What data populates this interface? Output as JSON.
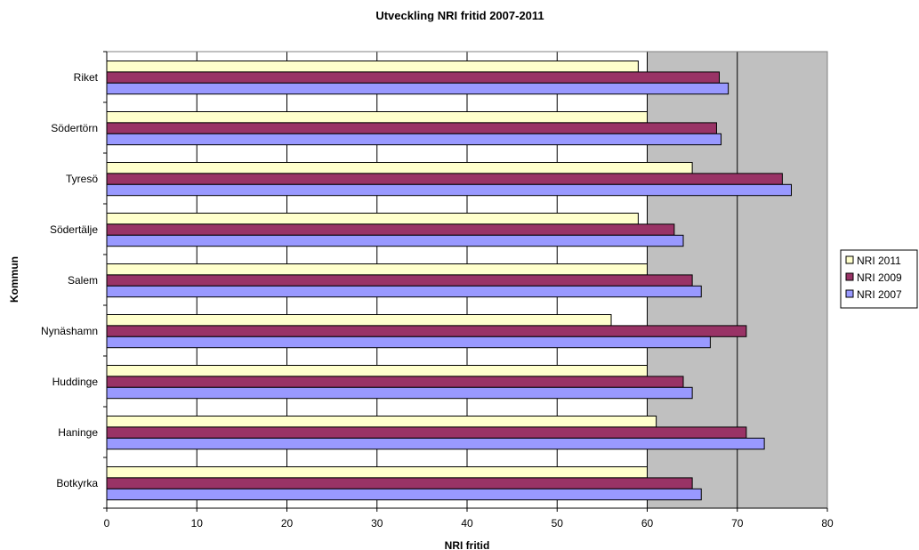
{
  "chart_data": {
    "type": "bar",
    "orientation": "horizontal",
    "title": "Utveckling NRI fritid 2007-2011",
    "xlabel": "NRI fritid",
    "ylabel": "Kommun",
    "xlim": [
      0,
      80
    ],
    "xticks": [
      "0",
      "10",
      "20",
      "30",
      "40",
      "50",
      "60",
      "70",
      "80"
    ],
    "grid": true,
    "legend_position": "right",
    "categories": [
      "Riket",
      "Södertörn",
      "Tyresö",
      "Södertälje",
      "Salem",
      "Nynäshamn",
      "Huddinge",
      "Haninge",
      "Botkyrka"
    ],
    "series": [
      {
        "name": "NRI 2011",
        "color": "#ffffcc",
        "values": [
          59,
          60,
          65,
          59,
          60,
          56,
          60,
          61,
          60
        ]
      },
      {
        "name": "NRI 2009",
        "color": "#993366",
        "values": [
          68,
          67.7,
          75,
          63,
          65,
          71,
          64,
          71,
          65
        ]
      },
      {
        "name": "NRI 2007",
        "color": "#9999ff",
        "values": [
          69,
          68.2,
          76,
          64,
          66,
          67,
          65,
          73,
          66
        ]
      }
    ],
    "plot_background": "#c0c0c0"
  }
}
